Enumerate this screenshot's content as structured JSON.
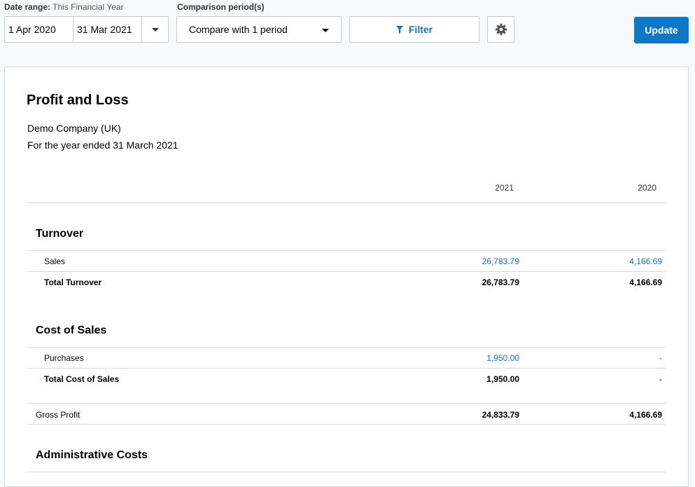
{
  "filters": {
    "date_range_label": "Date range:",
    "date_range_value": "This Financial Year",
    "date_from": "1 Apr 2020",
    "date_to": "31 Mar 2021",
    "comparison_label": "Comparison period(s)",
    "comparison_value": "Compare with 1 period",
    "filter_label": "Filter",
    "update_label": "Update"
  },
  "report": {
    "title": "Profit and Loss",
    "company": "Demo Company (UK)",
    "period": "For the year ended 31 March 2021",
    "columns": [
      "2021",
      "2020"
    ],
    "sections": {
      "turnover": {
        "heading": "Turnover",
        "rows": [
          {
            "name": "Sales",
            "v2021": "26,783.79",
            "v2020": "4,166.69"
          }
        ],
        "total": {
          "name": "Total Turnover",
          "v2021": "26,783.79",
          "v2020": "4,166.69"
        }
      },
      "cost_of_sales": {
        "heading": "Cost of Sales",
        "rows": [
          {
            "name": "Purchases",
            "v2021": "1,950.00",
            "v2020": "-"
          }
        ],
        "total": {
          "name": "Total Cost of Sales",
          "v2021": "1,950.00",
          "v2020": "-"
        }
      },
      "gross_profit": {
        "name": "Gross Profit",
        "v2021": "24,833.79",
        "v2020": "4,166.69"
      },
      "admin": {
        "heading": "Administrative Costs"
      }
    }
  },
  "colors": {
    "accent": "#0f78c6",
    "link": "#1a6fb5",
    "border": "#c5c9cf"
  }
}
